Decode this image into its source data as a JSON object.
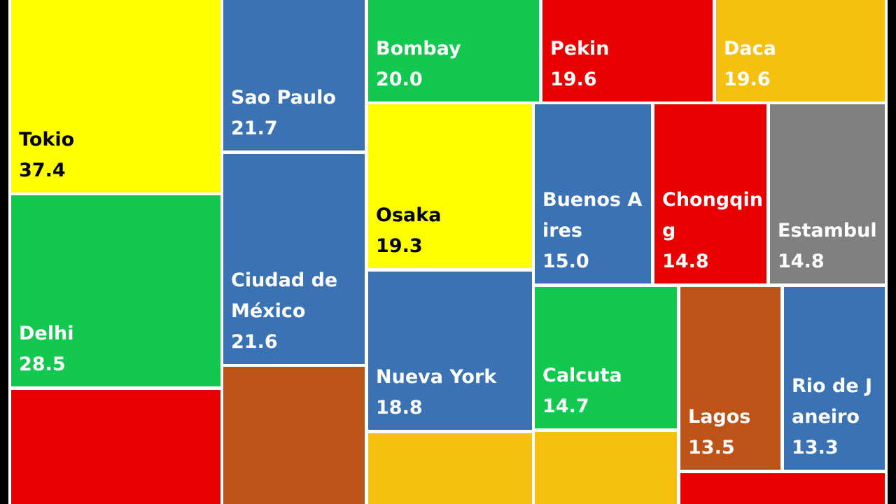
{
  "chart_data": {
    "type": "treemap",
    "title": "",
    "unit": "",
    "items": [
      {
        "name": "Tokio",
        "value": "37.4",
        "color": "#FFFF00",
        "text_color": "#000000"
      },
      {
        "name": "Delhi",
        "value": "28.5",
        "color": "#12C84E",
        "text_color": "#FFFFFF"
      },
      {
        "name": "",
        "value": "",
        "color": "#E80000",
        "text_color": "#FFFFFF"
      },
      {
        "name": "Sao Paulo",
        "value": "21.7",
        "color": "#3A72B4",
        "text_color": "#FFFFFF"
      },
      {
        "name": "Ciudad de México",
        "value": "21.6",
        "color": "#3A72B4",
        "text_color": "#FFFFFF"
      },
      {
        "name": "",
        "value": "",
        "color": "#BC5318",
        "text_color": "#FFFFFF"
      },
      {
        "name": "Bombay",
        "value": "20.0",
        "color": "#12C84E",
        "text_color": "#FFFFFF"
      },
      {
        "name": "Pekin",
        "value": "19.6",
        "color": "#E80000",
        "text_color": "#FFFFFF"
      },
      {
        "name": "Daca",
        "value": "19.6",
        "color": "#F5C010",
        "text_color": "#FFFFFF"
      },
      {
        "name": "Osaka",
        "value": "19.3",
        "color": "#FFFF00",
        "text_color": "#000000"
      },
      {
        "name": "Nueva York",
        "value": "18.8",
        "color": "#3A72B4",
        "text_color": "#FFFFFF"
      },
      {
        "name": "",
        "value": "",
        "color": "#F5C010",
        "text_color": "#FFFFFF"
      },
      {
        "name": "Buenos Aires",
        "value": "15.0",
        "color": "#3A72B4",
        "text_color": "#FFFFFF"
      },
      {
        "name": "Chongqing",
        "value": "14.8",
        "color": "#E80000",
        "text_color": "#FFFFFF"
      },
      {
        "name": "Estambul",
        "value": "14.8",
        "color": "#808080",
        "text_color": "#FFFFFF"
      },
      {
        "name": "Calcuta",
        "value": "14.7",
        "color": "#12C84E",
        "text_color": "#FFFFFF"
      },
      {
        "name": "",
        "value": "",
        "color": "#F5C010",
        "text_color": "#FFFFFF"
      },
      {
        "name": "Lagos",
        "value": "13.5",
        "color": "#BC5318",
        "text_color": "#FFFFFF"
      },
      {
        "name": "Rio de Janeiro",
        "value": "13.3",
        "color": "#3A72B4",
        "text_color": "#FFFFFF"
      },
      {
        "name": "",
        "value": "",
        "color": "#E80000",
        "text_color": "#FFFFFF"
      }
    ]
  }
}
